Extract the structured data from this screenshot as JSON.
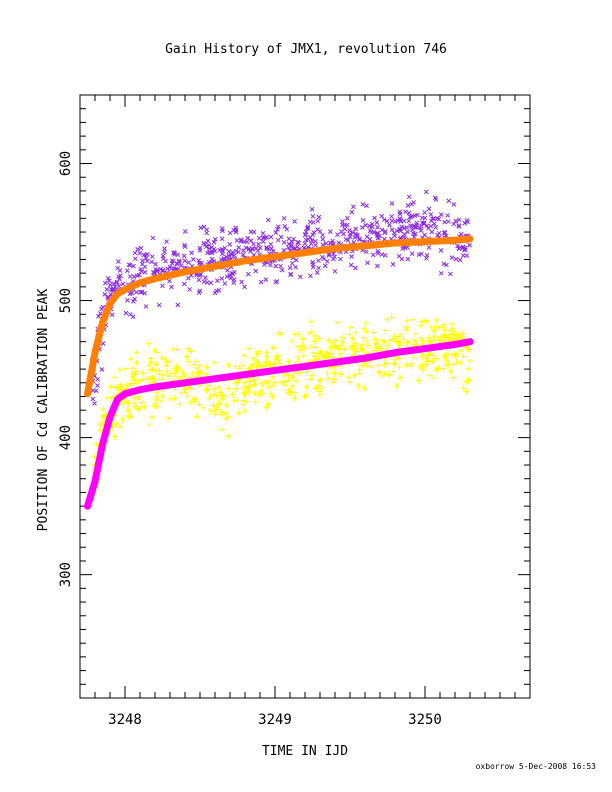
{
  "chart_data": {
    "type": "scatter",
    "title": "Gain History of JMX1, revolution 746",
    "xlabel": "TIME IN IJD",
    "ylabel": "POSITION OF Cd CALIBRATION PEAK",
    "xlim": [
      3247.7,
      3250.7
    ],
    "ylim": [
      210,
      650
    ],
    "x_ticks": [
      3248,
      3249,
      3250
    ],
    "y_ticks": [
      300,
      400,
      500,
      600
    ],
    "x_tick_labels": [
      "3248",
      "3249",
      "3250"
    ],
    "y_tick_labels": [
      "300",
      "400",
      "500",
      "600"
    ],
    "grid": false,
    "legend": "none",
    "series": [
      {
        "marker": "x",
        "color": "#8a2be2",
        "x": [
          3247.78,
          3247.82,
          3247.88,
          3247.95,
          3248.05,
          3248.15,
          3248.25,
          3248.35,
          3248.45,
          3248.55,
          3248.65,
          3248.75,
          3248.85,
          3248.95,
          3249.05,
          3249.15,
          3249.25,
          3249.35,
          3249.45,
          3249.55,
          3249.65,
          3249.75,
          3249.85,
          3249.95,
          3250.05,
          3250.15,
          3250.25,
          3250.3
        ],
        "y": [
          440,
          465,
          490,
          515,
          512,
          520,
          522,
          524,
          526,
          528,
          528,
          532,
          534,
          536,
          537,
          540,
          542,
          540,
          544,
          545,
          548,
          550,
          552,
          552,
          553,
          548,
          546,
          540
        ]
      },
      {
        "marker": "+",
        "color": "#ffff00",
        "x": [
          3247.78,
          3247.82,
          3247.88,
          3247.95,
          3248.05,
          3248.15,
          3248.25,
          3248.35,
          3248.45,
          3248.55,
          3248.65,
          3248.75,
          3248.85,
          3248.95,
          3249.05,
          3249.15,
          3249.25,
          3249.35,
          3249.45,
          3249.55,
          3249.65,
          3249.75,
          3249.85,
          3249.95,
          3250.05,
          3250.15,
          3250.25,
          3250.3
        ],
        "y": [
          370,
          390,
          415,
          432,
          438,
          440,
          442,
          444,
          441,
          438,
          425,
          437,
          446,
          445,
          448,
          452,
          456,
          458,
          460,
          462,
          463,
          464,
          465,
          466,
          465,
          467,
          464,
          460
        ]
      },
      {
        "type": "line",
        "color": "#ff8000",
        "x": [
          3247.75,
          3247.8,
          3247.85,
          3247.9,
          3247.95,
          3248.0,
          3248.1,
          3248.2,
          3248.4,
          3248.6,
          3248.8,
          3249.0,
          3249.2,
          3249.4,
          3249.6,
          3249.8,
          3250.0,
          3250.2,
          3250.3
        ],
        "y": [
          432,
          462,
          484,
          498,
          505,
          508,
          513,
          516,
          521,
          525,
          529,
          532,
          535,
          538,
          540,
          542,
          543,
          544,
          545
        ]
      },
      {
        "type": "line",
        "color": "#ff00ff",
        "x": [
          3247.75,
          3247.8,
          3247.85,
          3247.9,
          3247.95,
          3248.0,
          3248.1,
          3248.2,
          3248.4,
          3248.6,
          3248.8,
          3249.0,
          3249.2,
          3249.4,
          3249.6,
          3249.8,
          3250.0,
          3250.2,
          3250.3
        ],
        "y": [
          350,
          368,
          395,
          415,
          428,
          432,
          435,
          437,
          440,
          443,
          446,
          449,
          452,
          455,
          458,
          462,
          465,
          468,
          470
        ]
      }
    ]
  },
  "footer": {
    "credit": "oxborrow  5-Dec-2008 16:53"
  }
}
